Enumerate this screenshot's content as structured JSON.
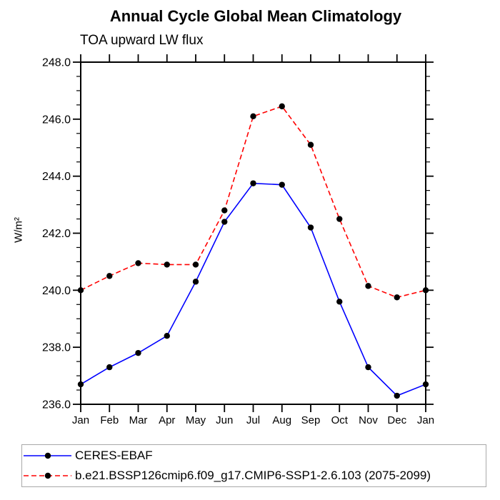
{
  "title": "Annual Cycle Global Mean Climatology",
  "subtitle": "TOA upward LW flux",
  "chart_data": {
    "type": "line",
    "title": "Annual Cycle Global Mean Climatology",
    "subtitle": "TOA upward LW flux",
    "xlabel": "",
    "ylabel": "W/m²",
    "categories": [
      "Jan",
      "Feb",
      "Mar",
      "Apr",
      "May",
      "Jun",
      "Jul",
      "Aug",
      "Sep",
      "Oct",
      "Nov",
      "Dec",
      "Jan"
    ],
    "ylim": [
      236.0,
      248.0
    ],
    "ytick_major": 2.0,
    "ytick_minor": 0.5,
    "ytick_labels": [
      "236.0",
      "238.0",
      "240.0",
      "242.0",
      "244.0",
      "246.0",
      "248.0"
    ],
    "grid": false,
    "legend_position": "bottom-left",
    "axis_color": "#000000",
    "series": [
      {
        "name": "CERES-EBAF",
        "color": "#0000ff",
        "line_style": "solid",
        "marker": "filled-circle",
        "marker_color": "#000000",
        "values": [
          236.7,
          237.3,
          237.8,
          238.4,
          240.3,
          242.4,
          243.75,
          243.7,
          242.2,
          239.6,
          237.3,
          236.3,
          236.7
        ]
      },
      {
        "name": "b.e21.BSSP126cmip6.f09_g17.CMIP6-SSP1-2.6.103 (2075-2099)",
        "color": "#ff0000",
        "line_style": "dashed",
        "marker": "filled-circle",
        "marker_color": "#000000",
        "values": [
          240.0,
          240.5,
          240.95,
          240.9,
          240.9,
          242.8,
          246.1,
          246.45,
          245.1,
          242.5,
          240.15,
          239.75,
          240.0
        ]
      }
    ]
  }
}
